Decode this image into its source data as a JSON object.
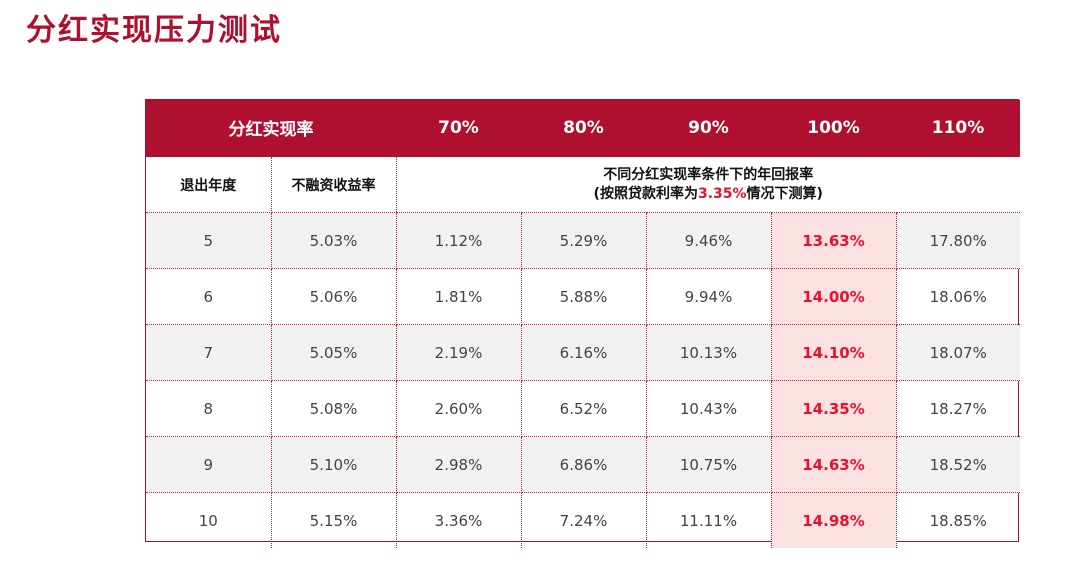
{
  "title": "分红实现压力测试",
  "table": {
    "header": {
      "label": "分红实现率",
      "rates": [
        "70%",
        "80%",
        "90%",
        "100%",
        "110%"
      ]
    },
    "subheader": {
      "col1": "退出年度",
      "col2": "不融资收益率",
      "note_line1": "不同分红实现率条件下的年回报率",
      "note_line2_pre": "(按照贷款利率为",
      "note_line2_rate": "3.35%",
      "note_line2_post": "情况下测算)"
    },
    "rows": [
      {
        "year": "5",
        "base": "5.03%",
        "r70": "1.12%",
        "r80": "5.29%",
        "r90": "9.46%",
        "r100": "13.63%",
        "r110": "17.80%"
      },
      {
        "year": "6",
        "base": "5.06%",
        "r70": "1.81%",
        "r80": "5.88%",
        "r90": "9.94%",
        "r100": "14.00%",
        "r110": "18.06%"
      },
      {
        "year": "7",
        "base": "5.05%",
        "r70": "2.19%",
        "r80": "6.16%",
        "r90": "10.13%",
        "r100": "14.10%",
        "r110": "18.07%"
      },
      {
        "year": "8",
        "base": "5.08%",
        "r70": "2.60%",
        "r80": "6.52%",
        "r90": "10.43%",
        "r100": "14.35%",
        "r110": "18.27%"
      },
      {
        "year": "9",
        "base": "5.10%",
        "r70": "2.98%",
        "r80": "6.86%",
        "r90": "10.75%",
        "r100": "14.63%",
        "r110": "18.52%"
      },
      {
        "year": "10",
        "base": "5.15%",
        "r70": "3.36%",
        "r80": "7.24%",
        "r90": "11.11%",
        "r100": "14.98%",
        "r110": "18.85%"
      }
    ]
  },
  "colors": {
    "brand": "#b0102f",
    "highlight_text": "#e8102a",
    "highlight_bg": "#fce1e3",
    "row_shade": "#f1f1f1"
  }
}
